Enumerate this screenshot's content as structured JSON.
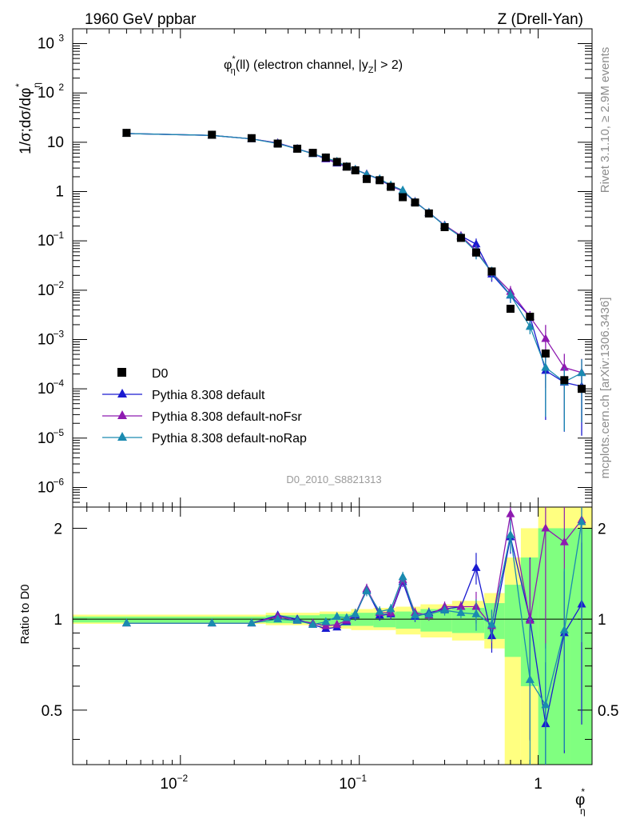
{
  "header": {
    "left": "1960 GeV ppbar",
    "right": "Z (Drell-Yan)"
  },
  "side_labels": {
    "rivet": "Rivet 3.1.10, ≥ 2.9M events",
    "mcplots": "mcplots.cern.ch [arXiv:1306.3436]"
  },
  "analysis_id": "D0_2010_S8821313",
  "plot_title": {
    "pre": "φ",
    "sup": "*",
    "sub": "η",
    "rest": "(ll) (electron channel, |y",
    "ysub": "Z",
    "end": "| > 2)"
  },
  "axes": {
    "ylabel_main": "1/σ;dσ/dφ",
    "ylabel_main_sup": "*",
    "ylabel_main_sub": "η",
    "ylabel_ratio": "Ratio to D0",
    "xlabel": "φ",
    "xlabel_sup": "*",
    "xlabel_sub": "η"
  },
  "colors": {
    "data": "#000000",
    "default": "#1a1ad0",
    "noFsr": "#8e1ab0",
    "noRap": "#1a8ab0",
    "band_outer": "#ffff80",
    "band_inner": "#80ff80"
  },
  "legend": [
    {
      "label": "D0",
      "key": "data"
    },
    {
      "label": "Pythia 8.308 default",
      "key": "default"
    },
    {
      "label": "Pythia 8.308 default-noFsr",
      "key": "noFsr"
    },
    {
      "label": "Pythia 8.308 default-noRap",
      "key": "noRap"
    }
  ],
  "chart_data": {
    "type": "scatter",
    "x_scale": "log",
    "y_scale": "log",
    "xlim": [
      0.0025,
      2.0
    ],
    "ylim_main": [
      4e-07,
      2000
    ],
    "ylim_ratio": [
      0.33,
      2.35
    ],
    "x_ticks": [
      "10^-2",
      "10^-1",
      "1"
    ],
    "y_ticks_main": [
      "10^-6",
      "10^-5",
      "10^-4",
      "10^-3",
      "10^-2",
      "10^-1",
      "1",
      "10",
      "10^2",
      "10^3"
    ],
    "y_ticks_ratio": [
      "0.5",
      "1",
      "2"
    ],
    "x": [
      0.005,
      0.015,
      0.025,
      0.035,
      0.045,
      0.055,
      0.065,
      0.075,
      0.085,
      0.095,
      0.11,
      0.13,
      0.15,
      0.175,
      0.205,
      0.245,
      0.3,
      0.37,
      0.45,
      0.55,
      0.7,
      0.9,
      1.1,
      1.4,
      1.75
    ],
    "data_values": [
      15.5,
      14.2,
      12.1,
      9.4,
      7.4,
      6.1,
      4.9,
      4.0,
      3.2,
      2.7,
      1.8,
      1.7,
      1.25,
      0.77,
      0.6,
      0.36,
      0.19,
      0.115,
      0.058,
      0.024,
      0.0042,
      0.0029,
      0.00052,
      0.00015,
      0.0001
    ],
    "series": [
      {
        "name": "Pythia 8.308 default",
        "key": "default",
        "ratio": [
          0.97,
          0.97,
          0.97,
          1.03,
          1.0,
          0.96,
          0.93,
          0.94,
          0.98,
          1.03,
          1.25,
          1.03,
          1.04,
          1.33,
          1.02,
          1.05,
          1.08,
          1.1,
          1.48,
          0.88,
          1.87,
          1.0,
          0.45,
          0.9,
          1.12
        ]
      },
      {
        "name": "Pythia 8.308 default-noFsr",
        "key": "noFsr",
        "ratio": [
          0.97,
          0.97,
          0.97,
          1.02,
          0.99,
          0.97,
          0.95,
          0.96,
          0.99,
          1.04,
          1.26,
          1.05,
          1.05,
          1.35,
          1.05,
          1.03,
          1.1,
          1.1,
          1.1,
          0.95,
          2.23,
          0.99,
          2.0,
          1.8,
          2.13
        ]
      },
      {
        "name": "Pythia 8.308 default-noRap",
        "key": "noRap",
        "ratio": [
          0.97,
          0.97,
          0.97,
          1.0,
          0.99,
          0.96,
          0.98,
          1.02,
          1.01,
          1.04,
          1.24,
          1.06,
          1.08,
          1.38,
          1.03,
          1.04,
          1.07,
          1.05,
          1.04,
          0.96,
          1.9,
          0.63,
          0.52,
          0.92,
          2.1
        ]
      }
    ],
    "band_outer": [
      [
        0.0025,
        0.965,
        1.035
      ],
      [
        0.03,
        0.955,
        1.05
      ],
      [
        0.06,
        0.93,
        1.06
      ],
      [
        0.09,
        0.92,
        1.08
      ],
      [
        0.12,
        0.92,
        1.09
      ],
      [
        0.16,
        0.89,
        1.1
      ],
      [
        0.22,
        0.87,
        1.12
      ],
      [
        0.33,
        0.85,
        1.15
      ],
      [
        0.5,
        0.8,
        1.22
      ],
      [
        0.65,
        0.33,
        1.6
      ],
      [
        0.8,
        0.33,
        2.0
      ],
      [
        1.0,
        0.33,
        2.35
      ]
    ],
    "band_inner": [
      [
        0.0025,
        0.975,
        1.02
      ],
      [
        0.03,
        0.97,
        1.03
      ],
      [
        0.06,
        0.95,
        1.04
      ],
      [
        0.09,
        0.95,
        1.05
      ],
      [
        0.12,
        0.94,
        1.05
      ],
      [
        0.16,
        0.93,
        1.06
      ],
      [
        0.22,
        0.91,
        1.08
      ],
      [
        0.33,
        0.9,
        1.09
      ],
      [
        0.5,
        0.86,
        1.13
      ],
      [
        0.65,
        0.75,
        1.3
      ],
      [
        0.8,
        0.6,
        1.6
      ],
      [
        1.0,
        0.33,
        2.0
      ],
      [
        1.5,
        0.33,
        2.0
      ]
    ]
  }
}
